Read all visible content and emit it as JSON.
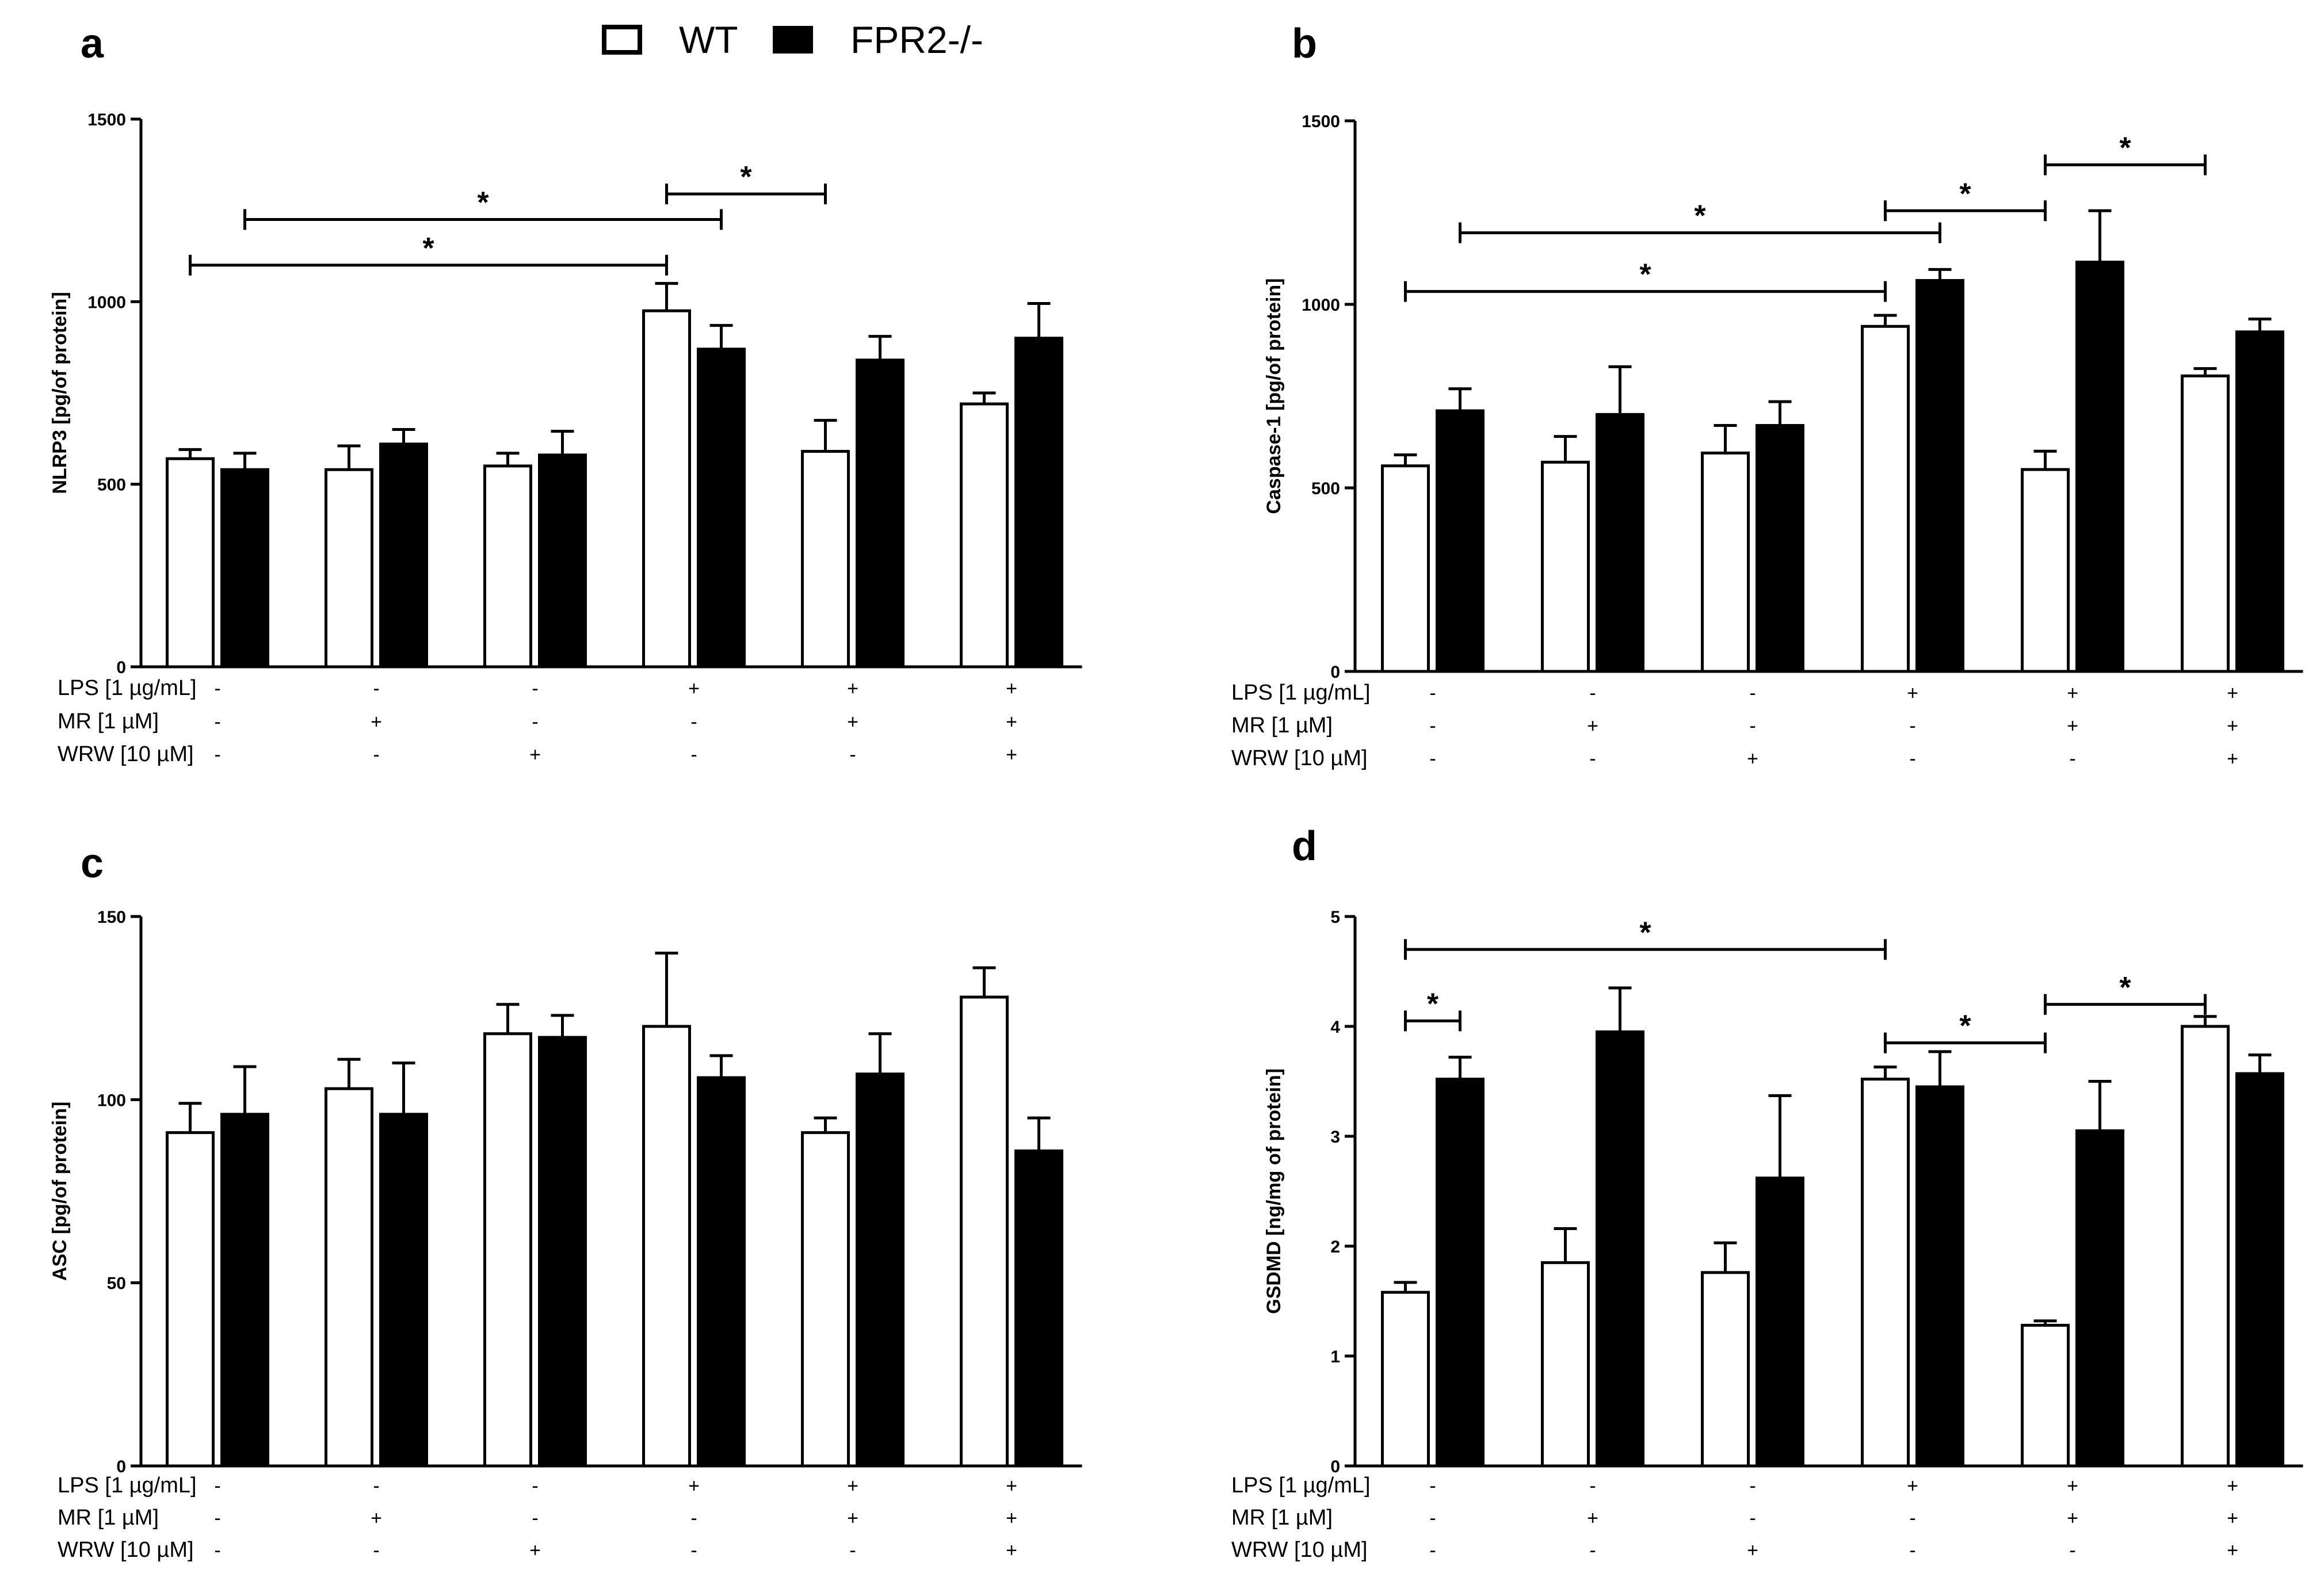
{
  "legend": {
    "wt": "WT",
    "ko": "FPR2-/-"
  },
  "colors": {
    "wt": "#ffffff",
    "ko": "#000000",
    "stroke": "#000000"
  },
  "treatments": {
    "labels": [
      "LPS [1 µg/mL]",
      "MR [1 µM]",
      "WRW [10 µM]"
    ],
    "signs": [
      [
        "-",
        "-",
        "-",
        "+",
        "+",
        "+"
      ],
      [
        "-",
        "+",
        "-",
        "-",
        "+",
        "+"
      ],
      [
        "-",
        "-",
        "+",
        "-",
        "-",
        "+"
      ]
    ]
  },
  "chart_data": [
    {
      "panel": "a",
      "type": "bar",
      "ylabel": "NLRP3 [pg/of protein]",
      "ylim": [
        0,
        1500
      ],
      "yticks": [
        0,
        500,
        1000,
        1500
      ],
      "groups": 6,
      "series": [
        {
          "name": "WT",
          "values": [
            570,
            540,
            550,
            975,
            590,
            720
          ],
          "errors": [
            25,
            65,
            35,
            75,
            85,
            30
          ]
        },
        {
          "name": "FPR2-/-",
          "values": [
            540,
            610,
            580,
            870,
            840,
            900
          ],
          "errors": [
            45,
            40,
            65,
            65,
            65,
            95
          ]
        }
      ],
      "significance": [
        {
          "from": [
            0,
            "WT"
          ],
          "to": [
            3,
            "WT"
          ],
          "y": 1100,
          "label": "*"
        },
        {
          "from": [
            0,
            "FPR2-/-"
          ],
          "to": [
            3,
            "FPR2-/-"
          ],
          "y": 1225,
          "label": "*"
        },
        {
          "from": [
            3,
            "WT"
          ],
          "to": [
            4,
            "WT"
          ],
          "y": 1295,
          "label": "*"
        }
      ]
    },
    {
      "panel": "b",
      "type": "bar",
      "ylabel": "Caspase-1 [pg/of protein]",
      "ylim": [
        0,
        1500
      ],
      "yticks": [
        0,
        500,
        1000,
        1500
      ],
      "groups": 6,
      "series": [
        {
          "name": "WT",
          "values": [
            560,
            570,
            595,
            940,
            550,
            805
          ],
          "errors": [
            30,
            70,
            75,
            30,
            50,
            20
          ]
        },
        {
          "name": "FPR2-/-",
          "values": [
            710,
            700,
            670,
            1065,
            1115,
            925
          ],
          "errors": [
            60,
            130,
            65,
            30,
            140,
            35
          ]
        }
      ],
      "significance": [
        {
          "from": [
            0,
            "WT"
          ],
          "to": [
            3,
            "WT"
          ],
          "y": 1035,
          "label": "*"
        },
        {
          "from": [
            0,
            "FPR2-/-"
          ],
          "to": [
            3,
            "FPR2-/-"
          ],
          "y": 1195,
          "label": "*"
        },
        {
          "from": [
            3,
            "WT"
          ],
          "to": [
            4,
            "WT"
          ],
          "y": 1255,
          "label": "*"
        },
        {
          "from": [
            4,
            "WT"
          ],
          "to": [
            5,
            "WT"
          ],
          "y": 1380,
          "label": "*"
        }
      ]
    },
    {
      "panel": "c",
      "type": "bar",
      "ylabel": "ASC [pg/of protein]",
      "ylim": [
        0,
        150
      ],
      "yticks": [
        0,
        50,
        100,
        150
      ],
      "groups": 6,
      "series": [
        {
          "name": "WT",
          "values": [
            91,
            103,
            118,
            120,
            91,
            128
          ],
          "errors": [
            8,
            8,
            8,
            20,
            4,
            8
          ]
        },
        {
          "name": "FPR2-/-",
          "values": [
            96,
            96,
            117,
            106,
            107,
            86
          ],
          "errors": [
            13,
            14,
            6,
            6,
            11,
            9
          ]
        }
      ],
      "significance": []
    },
    {
      "panel": "d",
      "type": "bar",
      "ylabel": "GSDMD [ng/mg of protein]",
      "ylim": [
        0,
        5
      ],
      "yticks": [
        0,
        1,
        2,
        3,
        4,
        5
      ],
      "groups": 6,
      "series": [
        {
          "name": "WT",
          "values": [
            1.58,
            1.85,
            1.76,
            3.52,
            1.28,
            4.0
          ],
          "errors": [
            0.09,
            0.31,
            0.27,
            0.11,
            0.04,
            0.09
          ]
        },
        {
          "name": "FPR2-/-",
          "values": [
            3.52,
            3.95,
            2.62,
            3.45,
            3.05,
            3.57
          ],
          "errors": [
            0.2,
            0.4,
            0.75,
            0.32,
            0.45,
            0.17
          ]
        }
      ],
      "significance": [
        {
          "from": [
            0,
            "WT"
          ],
          "to": [
            0,
            "FPR2-/-"
          ],
          "y": 4.05,
          "label": "*"
        },
        {
          "from": [
            0,
            "WT"
          ],
          "to": [
            3,
            "WT"
          ],
          "y": 4.7,
          "label": "*"
        },
        {
          "from": [
            3,
            "WT"
          ],
          "to": [
            4,
            "WT"
          ],
          "y": 3.85,
          "label": "*"
        },
        {
          "from": [
            4,
            "WT"
          ],
          "to": [
            5,
            "WT"
          ],
          "y": 4.2,
          "label": "*"
        }
      ]
    }
  ]
}
